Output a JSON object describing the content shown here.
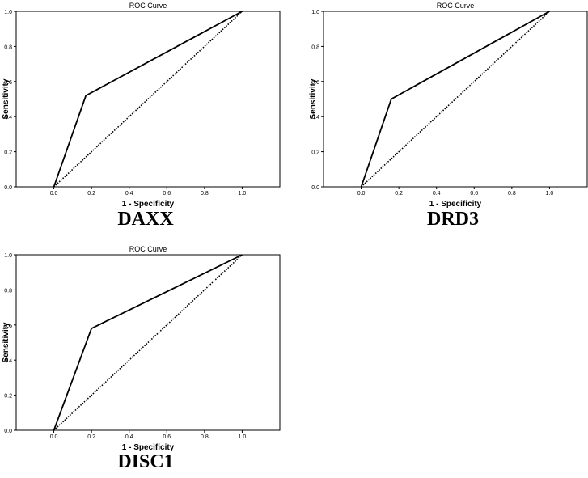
{
  "chart_data": [
    {
      "type": "line",
      "title": "ROC Curve",
      "xlabel": "1 - Specificity",
      "ylabel": "Sensitivity",
      "caption": "DAXX",
      "xlim": [
        -0.2,
        1.2
      ],
      "ylim": [
        0,
        1
      ],
      "x_ticks": [
        "0.0",
        "0.2",
        "0.4",
        "0.6",
        "0.8",
        "1.0"
      ],
      "y_ticks": [
        "0.0",
        "0.2",
        "0.4",
        "0.6",
        "0.8",
        "1.0"
      ],
      "grid": false,
      "series": [
        {
          "style": "solid",
          "x": [
            0.0,
            0.17,
            1.0
          ],
          "y": [
            0.0,
            0.52,
            1.0
          ]
        },
        {
          "style": "dotted",
          "x": [
            0.0,
            1.0
          ],
          "y": [
            0.0,
            1.0
          ]
        }
      ]
    },
    {
      "type": "line",
      "title": "ROC Curve",
      "xlabel": "1 - Specificity",
      "ylabel": "Sensitivity",
      "caption": "DRD3",
      "xlim": [
        -0.2,
        1.2
      ],
      "ylim": [
        0,
        1
      ],
      "x_ticks": [
        "0.0",
        "0.2",
        "0.4",
        "0.6",
        "0.8",
        "1.0"
      ],
      "y_ticks": [
        "0.0",
        "0.2",
        "0.4",
        "0.6",
        "0.8",
        "1.0"
      ],
      "grid": false,
      "series": [
        {
          "style": "solid",
          "x": [
            0.0,
            0.16,
            1.0
          ],
          "y": [
            0.0,
            0.5,
            1.0
          ]
        },
        {
          "style": "dotted",
          "x": [
            0.0,
            1.0
          ],
          "y": [
            0.0,
            1.0
          ]
        }
      ]
    },
    {
      "type": "line",
      "title": "ROC Curve",
      "xlabel": "1 - Specificity",
      "ylabel": "Sensitivity",
      "caption": "DISC1",
      "xlim": [
        -0.2,
        1.2
      ],
      "ylim": [
        0,
        1
      ],
      "x_ticks": [
        "0.0",
        "0.2",
        "0.4",
        "0.6",
        "0.8",
        "1.0"
      ],
      "y_ticks": [
        "0.0",
        "0.2",
        "0.4",
        "0.6",
        "0.8",
        "1.0"
      ],
      "grid": false,
      "series": [
        {
          "style": "solid",
          "x": [
            0.0,
            0.2,
            1.0
          ],
          "y": [
            0.0,
            0.58,
            1.0
          ]
        },
        {
          "style": "dotted",
          "x": [
            0.0,
            1.0
          ],
          "y": [
            0.0,
            1.0
          ]
        }
      ]
    }
  ]
}
